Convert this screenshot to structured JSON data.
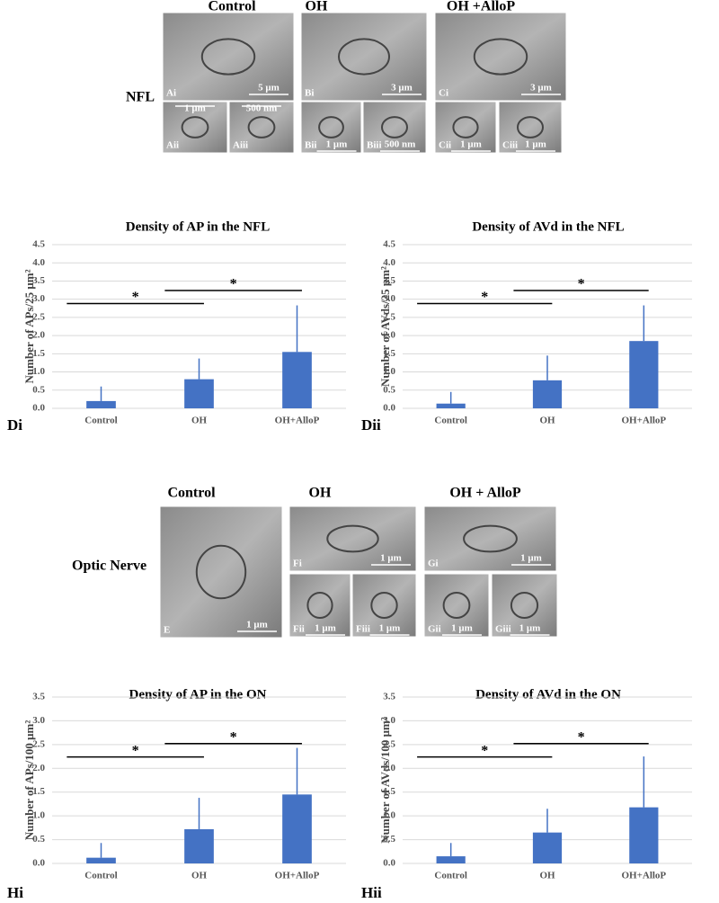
{
  "nfl_figure": {
    "headers": [
      "Control",
      "OH",
      "OH +AlloP"
    ],
    "row_label": "NFL",
    "panels": [
      {
        "label": "Ai",
        "scale": "5 μm"
      },
      {
        "label": "Aii",
        "scale": "1 μm"
      },
      {
        "label": "Aiii",
        "scale": "500 nm"
      },
      {
        "label": "Bi",
        "scale": "3 μm"
      },
      {
        "label": "Bii",
        "scale": "1 μm"
      },
      {
        "label": "Biii",
        "scale": "500 nm"
      },
      {
        "label": "Ci",
        "scale": "3 μm"
      },
      {
        "label": "Cii",
        "scale": "1 μm"
      },
      {
        "label": "Ciii",
        "scale": "1 μm"
      }
    ]
  },
  "on_figure": {
    "headers": [
      "Control",
      "OH",
      "OH + AlloP"
    ],
    "row_label": "Optic Nerve",
    "panels": [
      {
        "label": "E",
        "scale": "1 μm"
      },
      {
        "label": "Fi",
        "scale": "1 μm"
      },
      {
        "label": "Fii",
        "scale": "1 μm"
      },
      {
        "label": "Fiii",
        "scale": "1 μm"
      },
      {
        "label": "Gi",
        "scale": "1 μm"
      },
      {
        "label": "Gii",
        "scale": "1 μm"
      },
      {
        "label": "Giii",
        "scale": "1 μm"
      }
    ]
  },
  "chart_data": [
    {
      "type": "bar",
      "panel": "Di",
      "title": "Density of AP in the NFL",
      "y_label": "Number of APs/25 μm²",
      "categories": [
        "Control",
        "OH",
        "OH+AlloP"
      ],
      "values": [
        0.2,
        0.8,
        1.55
      ],
      "errors": [
        0.4,
        0.57,
        1.28
      ],
      "color": "#4472c4",
      "annotations": [
        "*",
        "*"
      ],
      "grid": true,
      "ylim": [
        0,
        4.5
      ],
      "yticks": [
        {
          "value": 0,
          "label": "0.0"
        },
        {
          "value": 0.5,
          "label": "0.5"
        },
        {
          "value": 1,
          "label": "1.0"
        },
        {
          "value": 1.5,
          "label": "1.5"
        },
        {
          "value": 2,
          "label": "2.0"
        },
        {
          "value": 2.5,
          "label": "2.5"
        },
        {
          "value": 3,
          "label": "3.0"
        },
        {
          "value": 3.5,
          "label": "3.5"
        },
        {
          "value": 4,
          "label": "4.0"
        },
        {
          "value": 4.5,
          "label": "4.5"
        }
      ]
    },
    {
      "type": "bar",
      "panel": "Dii",
      "title": "Density of AVd in the NFL",
      "y_label": "Number of AVds/25 μm²",
      "categories": [
        "Control",
        "OH",
        "OH+AlloP"
      ],
      "values": [
        0.13,
        0.77,
        1.85
      ],
      "errors": [
        0.32,
        0.68,
        0.98
      ],
      "color": "#4472c4",
      "annotations": [
        "*",
        "*"
      ],
      "grid": true,
      "ylim": [
        0,
        4.5
      ],
      "yticks": [
        {
          "value": 0,
          "label": "0.0"
        },
        {
          "value": 0.5,
          "label": "0.5"
        },
        {
          "value": 1,
          "label": "1.0"
        },
        {
          "value": 1.5,
          "label": "1.5"
        },
        {
          "value": 2,
          "label": "2.0"
        },
        {
          "value": 2.5,
          "label": "2.5"
        },
        {
          "value": 3,
          "label": "3.0"
        },
        {
          "value": 3.5,
          "label": "3.5"
        },
        {
          "value": 4,
          "label": "4.0"
        },
        {
          "value": 4.5,
          "label": "4.5"
        }
      ]
    },
    {
      "type": "bar",
      "panel": "Hi",
      "title": "Density of AP in the ON",
      "y_label": "Number of APs/100 μm²",
      "categories": [
        "Control",
        "OH",
        "OH+AlloP"
      ],
      "values": [
        0.12,
        0.72,
        1.45
      ],
      "errors": [
        0.31,
        0.66,
        0.98
      ],
      "color": "#4472c4",
      "annotations": [
        "*",
        "*"
      ],
      "grid": true,
      "ylim": [
        0,
        3.5
      ],
      "yticks": [
        {
          "value": 0,
          "label": "0.0"
        },
        {
          "value": 0.5,
          "label": "0.5"
        },
        {
          "value": 1,
          "label": "1.0"
        },
        {
          "value": 1.5,
          "label": "1.5"
        },
        {
          "value": 2,
          "label": "2.0"
        },
        {
          "value": 2.5,
          "label": "2.5"
        },
        {
          "value": 3,
          "label": "3.0"
        },
        {
          "value": 3.5,
          "label": "3.5"
        }
      ]
    },
    {
      "type": "bar",
      "panel": "Hii",
      "title": "Density of AVd in the ON",
      "y_label": "Number of AVds/100 μm²",
      "categories": [
        "Control",
        "OH",
        "OH+AlloP"
      ],
      "values": [
        0.15,
        0.65,
        1.18
      ],
      "errors": [
        0.28,
        0.5,
        1.07
      ],
      "color": "#4472c4",
      "annotations": [
        "*",
        "*"
      ],
      "grid": true,
      "ylim": [
        0,
        3.5
      ],
      "yticks": [
        {
          "value": 0,
          "label": "0.0"
        },
        {
          "value": 0.5,
          "label": "0.5"
        },
        {
          "value": 1,
          "label": "1.0"
        },
        {
          "value": 1.5,
          "label": "1.5"
        },
        {
          "value": 2,
          "label": "2.0"
        },
        {
          "value": 2.5,
          "label": "2.5"
        },
        {
          "value": 3,
          "label": "3.0"
        },
        {
          "value": 3.5,
          "label": "3.5"
        }
      ]
    }
  ]
}
